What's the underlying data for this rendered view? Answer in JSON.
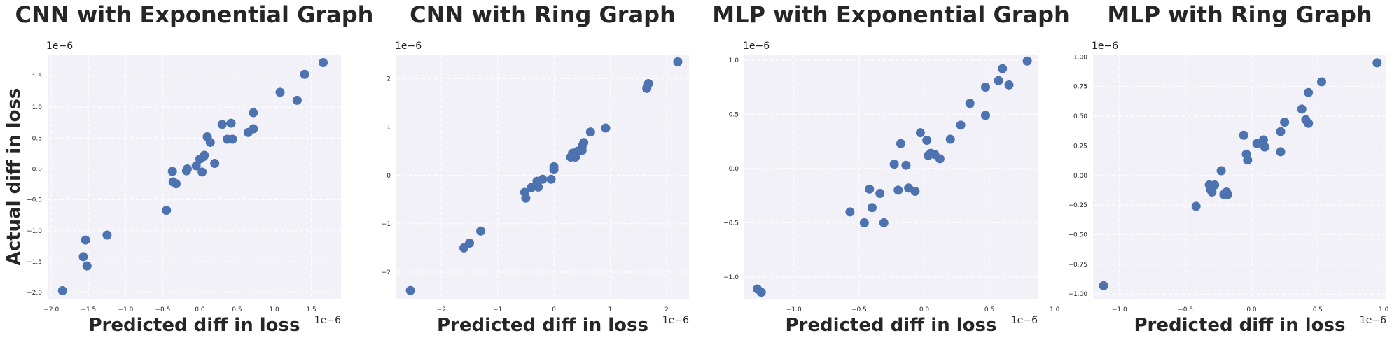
{
  "chart_data": [
    {
      "type": "scatter",
      "title": "CNN with Exponential Graph",
      "xlabel": "Predicted diff in loss",
      "ylabel": "Actual diff in loss",
      "x_offset_label": "1e−6",
      "y_offset_label": "1e−6",
      "xlim": [
        -2.05,
        1.9
      ],
      "ylim": [
        -2.1,
        1.85
      ],
      "xticks": [
        -2.0,
        -1.5,
        -1.0,
        -0.5,
        0.0,
        0.5,
        1.0,
        1.5
      ],
      "yticks": [
        -2.0,
        -1.5,
        -1.0,
        -0.5,
        0.0,
        0.5,
        1.0,
        1.5
      ],
      "xtick_labels": [
        "−2.0",
        "−1.5",
        "−1.0",
        "−0.5",
        "0.0",
        "0.5",
        "1.0",
        "1.5"
      ],
      "ytick_labels": [
        "−2.0",
        "−1.5",
        "−1.0",
        "−0.5",
        "0.0",
        "0.5",
        "1.0",
        "1.5"
      ],
      "grid": true,
      "points": [
        [
          -1.85,
          -1.97
        ],
        [
          -1.57,
          -1.42
        ],
        [
          -1.54,
          -1.15
        ],
        [
          -1.52,
          -1.57
        ],
        [
          -1.25,
          -1.07
        ],
        [
          -0.45,
          -0.67
        ],
        [
          -0.37,
          -0.04
        ],
        [
          -0.36,
          -0.21
        ],
        [
          -0.32,
          -0.24
        ],
        [
          -0.18,
          -0.03
        ],
        [
          -0.17,
          0.0
        ],
        [
          -0.05,
          0.05
        ],
        [
          0.0,
          0.16
        ],
        [
          0.03,
          -0.05
        ],
        [
          0.05,
          0.2
        ],
        [
          0.06,
          0.22
        ],
        [
          0.1,
          0.52
        ],
        [
          0.14,
          0.43
        ],
        [
          0.2,
          0.09
        ],
        [
          0.3,
          0.72
        ],
        [
          0.37,
          0.48
        ],
        [
          0.42,
          0.74
        ],
        [
          0.44,
          0.48
        ],
        [
          0.65,
          0.59
        ],
        [
          0.72,
          0.65
        ],
        [
          0.72,
          0.91
        ],
        [
          1.08,
          1.24
        ],
        [
          1.31,
          1.11
        ],
        [
          1.41,
          1.53
        ],
        [
          1.66,
          1.72
        ]
      ]
    },
    {
      "type": "scatter",
      "title": "CNN with Ring Graph",
      "xlabel": "Predicted diff in loss",
      "ylabel": "",
      "x_offset_label": "1e−6",
      "y_offset_label": "1e−6",
      "xlim": [
        -2.8,
        2.4
      ],
      "ylim": [
        -2.55,
        2.5
      ],
      "xticks": [
        -2,
        -1,
        0,
        1,
        2
      ],
      "yticks": [
        -2,
        -1,
        0,
        1,
        2
      ],
      "xtick_labels": [
        "−2",
        "−1",
        "0",
        "1",
        "2"
      ],
      "ytick_labels": [
        "−2",
        "−1",
        "0",
        "1",
        "2"
      ],
      "grid": true,
      "points": [
        [
          -2.55,
          -2.38
        ],
        [
          -1.6,
          -1.5
        ],
        [
          -1.5,
          -1.4
        ],
        [
          -1.3,
          -1.15
        ],
        [
          -0.52,
          -0.35
        ],
        [
          -0.5,
          -0.47
        ],
        [
          -0.4,
          -0.25
        ],
        [
          -0.3,
          -0.12
        ],
        [
          -0.28,
          -0.24
        ],
        [
          -0.2,
          -0.08
        ],
        [
          -0.05,
          -0.08
        ],
        [
          0.0,
          0.12
        ],
        [
          0.0,
          0.18
        ],
        [
          0.3,
          0.38
        ],
        [
          0.33,
          0.46
        ],
        [
          0.38,
          0.38
        ],
        [
          0.42,
          0.5
        ],
        [
          0.5,
          0.52
        ],
        [
          0.5,
          0.6
        ],
        [
          0.53,
          0.68
        ],
        [
          0.65,
          0.9
        ],
        [
          0.92,
          0.98
        ],
        [
          1.65,
          1.8
        ],
        [
          1.68,
          1.9
        ],
        [
          2.2,
          2.35
        ]
      ]
    },
    {
      "type": "scatter",
      "title": "MLP with Exponential Graph",
      "xlabel": "Predicted diff in loss",
      "ylabel": "",
      "x_offset_label": "1e−6",
      "y_offset_label": "1e−6",
      "xlim": [
        -1.38,
        0.87
      ],
      "ylim": [
        -1.2,
        1.05
      ],
      "xticks": [
        -1.0,
        -0.5,
        0.0,
        0.5,
        1.0
      ],
      "yticks": [
        -1.0,
        -0.5,
        0.0,
        0.5,
        1.0
      ],
      "xtick_labels": [
        "−1.0",
        "−0.5",
        "0.0",
        "0.5",
        "1.0"
      ],
      "ytick_labels": [
        "−1.0",
        "−0.5",
        "0.0",
        "0.5",
        "1.0"
      ],
      "grid": true,
      "points": [
        [
          -1.28,
          -1.11
        ],
        [
          -1.25,
          -1.14
        ],
        [
          -0.57,
          -0.4
        ],
        [
          -0.46,
          -0.5
        ],
        [
          -0.42,
          -0.19
        ],
        [
          -0.4,
          -0.36
        ],
        [
          -0.34,
          -0.23
        ],
        [
          -0.31,
          -0.5
        ],
        [
          -0.23,
          0.04
        ],
        [
          -0.2,
          -0.2
        ],
        [
          -0.18,
          0.23
        ],
        [
          -0.14,
          0.03
        ],
        [
          -0.12,
          -0.18
        ],
        [
          -0.07,
          -0.21
        ],
        [
          -0.03,
          0.33
        ],
        [
          0.02,
          0.26
        ],
        [
          0.03,
          0.12
        ],
        [
          0.05,
          0.14
        ],
        [
          0.08,
          0.13
        ],
        [
          0.12,
          0.09
        ],
        [
          0.2,
          0.27
        ],
        [
          0.28,
          0.4
        ],
        [
          0.35,
          0.6
        ],
        [
          0.47,
          0.75
        ],
        [
          0.47,
          0.49
        ],
        [
          0.57,
          0.81
        ],
        [
          0.6,
          0.92
        ],
        [
          0.65,
          0.77
        ],
        [
          0.79,
          0.99
        ]
      ]
    },
    {
      "type": "scatter",
      "title": "MLP with Ring Graph",
      "xlabel": "Predicted diff in loss",
      "ylabel": "",
      "x_offset_label": "1e−6",
      "y_offset_label": "1e−6",
      "xlim": [
        -1.2,
        1.02
      ],
      "ylim": [
        -1.04,
        1.02
      ],
      "xticks": [
        -1.0,
        -0.5,
        0.0,
        0.5,
        1.0
      ],
      "yticks": [
        -1.0,
        -0.75,
        -0.5,
        -0.25,
        0.0,
        0.25,
        0.5,
        0.75,
        1.0
      ],
      "xtick_labels": [
        "−1.0",
        "−0.5",
        "0.0",
        "0.5",
        "1.0"
      ],
      "ytick_labels": [
        "−1.00",
        "−0.75",
        "−0.50",
        "−0.25",
        "0.00",
        "0.25",
        "0.50",
        "0.75",
        "1.00"
      ],
      "grid": true,
      "points": [
        [
          -1.12,
          -0.93
        ],
        [
          -0.42,
          -0.26
        ],
        [
          -0.32,
          -0.08
        ],
        [
          -0.31,
          -0.12
        ],
        [
          -0.3,
          -0.14
        ],
        [
          -0.28,
          -0.08
        ],
        [
          -0.23,
          0.04
        ],
        [
          -0.21,
          -0.16
        ],
        [
          -0.19,
          -0.14
        ],
        [
          -0.18,
          -0.16
        ],
        [
          -0.06,
          0.34
        ],
        [
          -0.04,
          0.18
        ],
        [
          -0.03,
          0.13
        ],
        [
          0.04,
          0.27
        ],
        [
          0.09,
          0.3
        ],
        [
          0.1,
          0.24
        ],
        [
          0.22,
          0.37
        ],
        [
          0.22,
          0.2
        ],
        [
          0.25,
          0.45
        ],
        [
          0.38,
          0.56
        ],
        [
          0.41,
          0.47
        ],
        [
          0.43,
          0.44
        ],
        [
          0.43,
          0.7
        ],
        [
          0.53,
          0.79
        ],
        [
          0.95,
          0.95
        ]
      ]
    }
  ]
}
